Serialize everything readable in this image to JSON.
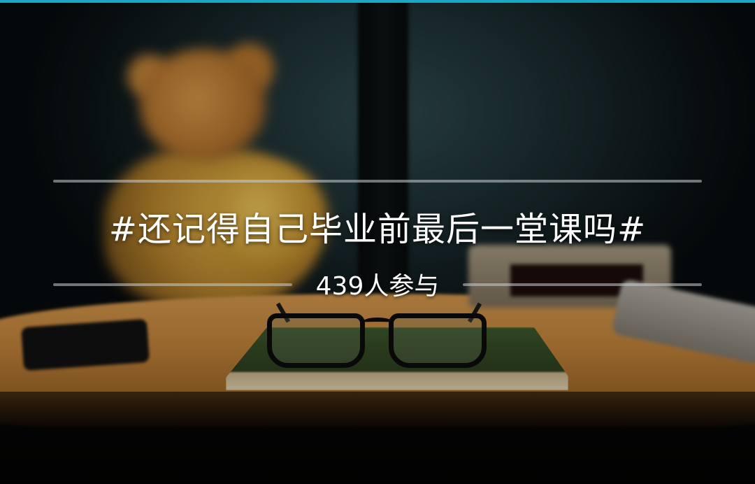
{
  "banner": {
    "accent_color": "#1aa7c4",
    "topic_title": "#还记得自己毕业前最后一堂课吗#",
    "participants_count": "439人参与"
  }
}
